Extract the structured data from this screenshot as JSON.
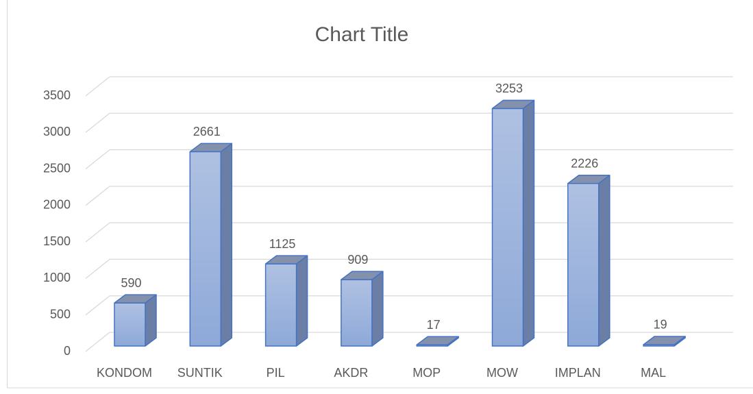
{
  "chart_data": {
    "type": "bar3d",
    "title": "Chart Title",
    "categories": [
      "KONDOM",
      "SUNTIK",
      "PIL",
      "AKDR",
      "MOP",
      "MOW",
      "IMPLAN",
      "MAL"
    ],
    "values": [
      590,
      2661,
      1125,
      909,
      17,
      3253,
      2226,
      19
    ],
    "color": "#4472c4",
    "ylim": [
      0,
      3500
    ],
    "yticks": [
      0,
      500,
      1000,
      1500,
      2000,
      2500,
      3000,
      3500
    ],
    "grid": true
  }
}
